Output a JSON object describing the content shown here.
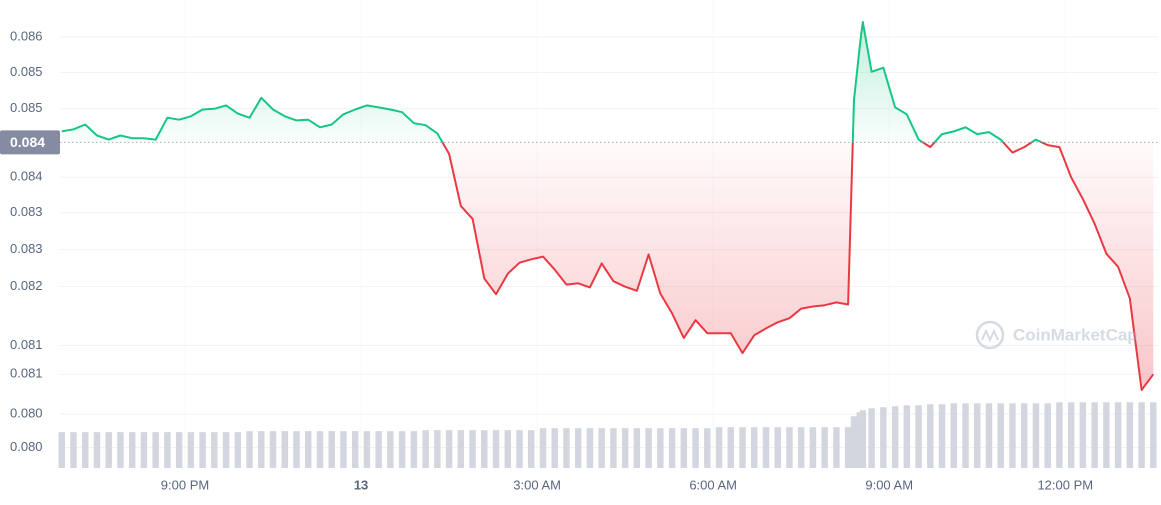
{
  "chart_data": {
    "type": "line",
    "x": [
      18.9,
      19.1,
      19.3,
      19.5,
      19.7,
      19.9,
      20.1,
      20.3,
      20.5,
      20.7,
      20.9,
      21.1,
      21.3,
      21.5,
      21.7,
      21.9,
      22.1,
      22.3,
      22.5,
      22.7,
      22.9,
      23.1,
      23.3,
      23.5,
      23.7,
      23.9,
      24.1,
      24.3,
      24.5,
      24.7,
      24.9,
      25.1,
      25.3,
      25.5,
      25.7,
      25.9,
      26.1,
      26.3,
      26.5,
      26.7,
      26.9,
      27.1,
      27.3,
      27.5,
      27.7,
      27.9,
      28.1,
      28.3,
      28.5,
      28.7,
      28.9,
      29.1,
      29.3,
      29.5,
      29.7,
      29.9,
      30.1,
      30.3,
      30.5,
      30.7,
      30.9,
      31.1,
      31.3,
      31.5,
      31.7,
      31.9,
      32.1,
      32.3,
      32.4,
      32.5,
      32.55,
      32.7,
      32.9,
      33.1,
      33.3,
      33.5,
      33.7,
      33.9,
      34.1,
      34.3,
      34.5,
      34.7,
      34.9,
      35.1,
      35.3,
      35.5,
      35.7,
      35.9,
      36.1,
      36.3,
      36.5,
      36.7,
      36.9,
      37.1,
      37.3,
      37.5
    ],
    "series": [
      {
        "color": "#16c784",
        "negative_color": "#ea3943",
        "values": [
          0.08462,
          0.08465,
          0.08472,
          0.08456,
          0.0845,
          0.08456,
          0.08452,
          0.08452,
          0.0845,
          0.08482,
          0.08479,
          0.08484,
          0.08494,
          0.08495,
          0.085,
          0.08488,
          0.08482,
          0.08511,
          0.08494,
          0.08484,
          0.08478,
          0.08479,
          0.08468,
          0.08472,
          0.08487,
          0.08494,
          0.085,
          0.08497,
          0.08494,
          0.0849,
          0.08474,
          0.08471,
          0.08459,
          0.08429,
          0.08353,
          0.08334,
          0.08247,
          0.08224,
          0.08254,
          0.0827,
          0.08275,
          0.08279,
          0.0826,
          0.08238,
          0.0824,
          0.08234,
          0.08269,
          0.08243,
          0.08235,
          0.08229,
          0.08282,
          0.08225,
          0.08196,
          0.0816,
          0.08186,
          0.08167,
          0.08167,
          0.08167,
          0.08138,
          0.08164,
          0.08174,
          0.08183,
          0.08189,
          0.08203,
          0.08206,
          0.08208,
          0.08212,
          0.08209,
          0.08508,
          0.08588,
          0.08622,
          0.08549,
          0.08555,
          0.08497,
          0.08487,
          0.0845,
          0.08439,
          0.08458,
          0.08462,
          0.08468,
          0.08458,
          0.08461,
          0.0845,
          0.08431,
          0.08439,
          0.0845,
          0.08442,
          0.08439,
          0.08395,
          0.08363,
          0.08327,
          0.08283,
          0.08264,
          0.08218,
          0.08084,
          0.08107
        ]
      },
      {
        "type": "bar",
        "axis": "y2",
        "color": "#d3d6de",
        "values": [
          36,
          36,
          36,
          36,
          36,
          36,
          36,
          36,
          36,
          36,
          36,
          36,
          36,
          36,
          36,
          36,
          37,
          37,
          37,
          37,
          37,
          37,
          37,
          37,
          37,
          37,
          37,
          37,
          37,
          37,
          37,
          38,
          38,
          38,
          38,
          38,
          38,
          38,
          38,
          38,
          38,
          40,
          40,
          40,
          40,
          40,
          40,
          40,
          40,
          40,
          40,
          40,
          40,
          40,
          40,
          40,
          41,
          41,
          41,
          41,
          41,
          41,
          41,
          41,
          41,
          41,
          41,
          41,
          52,
          56,
          58,
          60,
          61,
          62,
          63,
          63,
          64,
          64,
          65,
          65,
          65,
          65,
          65,
          65,
          65,
          65,
          65,
          66,
          66,
          66,
          66,
          66,
          66,
          66,
          66,
          66
        ]
      }
    ],
    "baseline": {
      "value": 0.08446,
      "label": "0.084"
    },
    "xlim": [
      18.87,
      37.58
    ],
    "xticks": [
      {
        "value": 21,
        "label": "9:00 PM"
      },
      {
        "value": 24,
        "label": "13"
      },
      {
        "value": 27,
        "label": "3:00 AM"
      },
      {
        "value": 30,
        "label": "6:00 AM"
      },
      {
        "value": 33,
        "label": "9:00 AM"
      },
      {
        "value": 36,
        "label": "12:00 PM"
      }
    ],
    "ylim": [
      0.0797,
      0.08654
    ],
    "yticks": [
      {
        "value": 0.086,
        "label": "0.086"
      },
      {
        "value": 0.08548,
        "label": "0.085"
      },
      {
        "value": 0.08495,
        "label": "0.085"
      },
      {
        "value": 0.08395,
        "label": "0.084"
      },
      {
        "value": 0.08343,
        "label": "0.083"
      },
      {
        "value": 0.08289,
        "label": "0.083"
      },
      {
        "value": 0.08235,
        "label": "0.082"
      },
      {
        "value": 0.08149,
        "label": "0.081"
      },
      {
        "value": 0.08107,
        "label": "0.081"
      },
      {
        "value": 0.08049,
        "label": "0.080"
      },
      {
        "value": 0.08,
        "label": "0.080"
      }
    ],
    "y2lim": [
      0,
      470
    ],
    "grid": true,
    "watermark": "CoinMarketCap"
  }
}
